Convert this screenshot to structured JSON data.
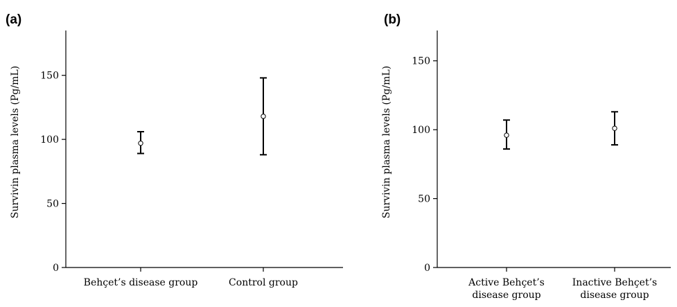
{
  "chart_data": [
    {
      "type": "errorbar",
      "panel_label": "(a)",
      "ylabel": "Survivin plasma levels (Pg/mL)",
      "ylim": [
        0,
        185
      ],
      "yticks": [
        0,
        50,
        100,
        150
      ],
      "categories": [
        "Behçet’s disease group",
        "Control group"
      ],
      "points": [
        {
          "category": "Behçet’s disease group",
          "mean": 97,
          "low": 89,
          "high": 106
        },
        {
          "category": "Control group",
          "mean": 118,
          "low": 88,
          "high": 148
        }
      ]
    },
    {
      "type": "errorbar",
      "panel_label": "(b)",
      "ylabel": "Survivin plasma levels (Pg/mL)",
      "ylim": [
        0,
        172
      ],
      "yticks": [
        0,
        50,
        100,
        150
      ],
      "categories": [
        [
          "Active Behçet’s",
          "disease group"
        ],
        [
          "Inactive Behçet’s",
          "disease group"
        ]
      ],
      "points": [
        {
          "category": "Active Behçet’s disease group",
          "mean": 96,
          "low": 86,
          "high": 107
        },
        {
          "category": "Inactive Behçet’s disease group",
          "mean": 101,
          "low": 89,
          "high": 113
        }
      ]
    }
  ]
}
